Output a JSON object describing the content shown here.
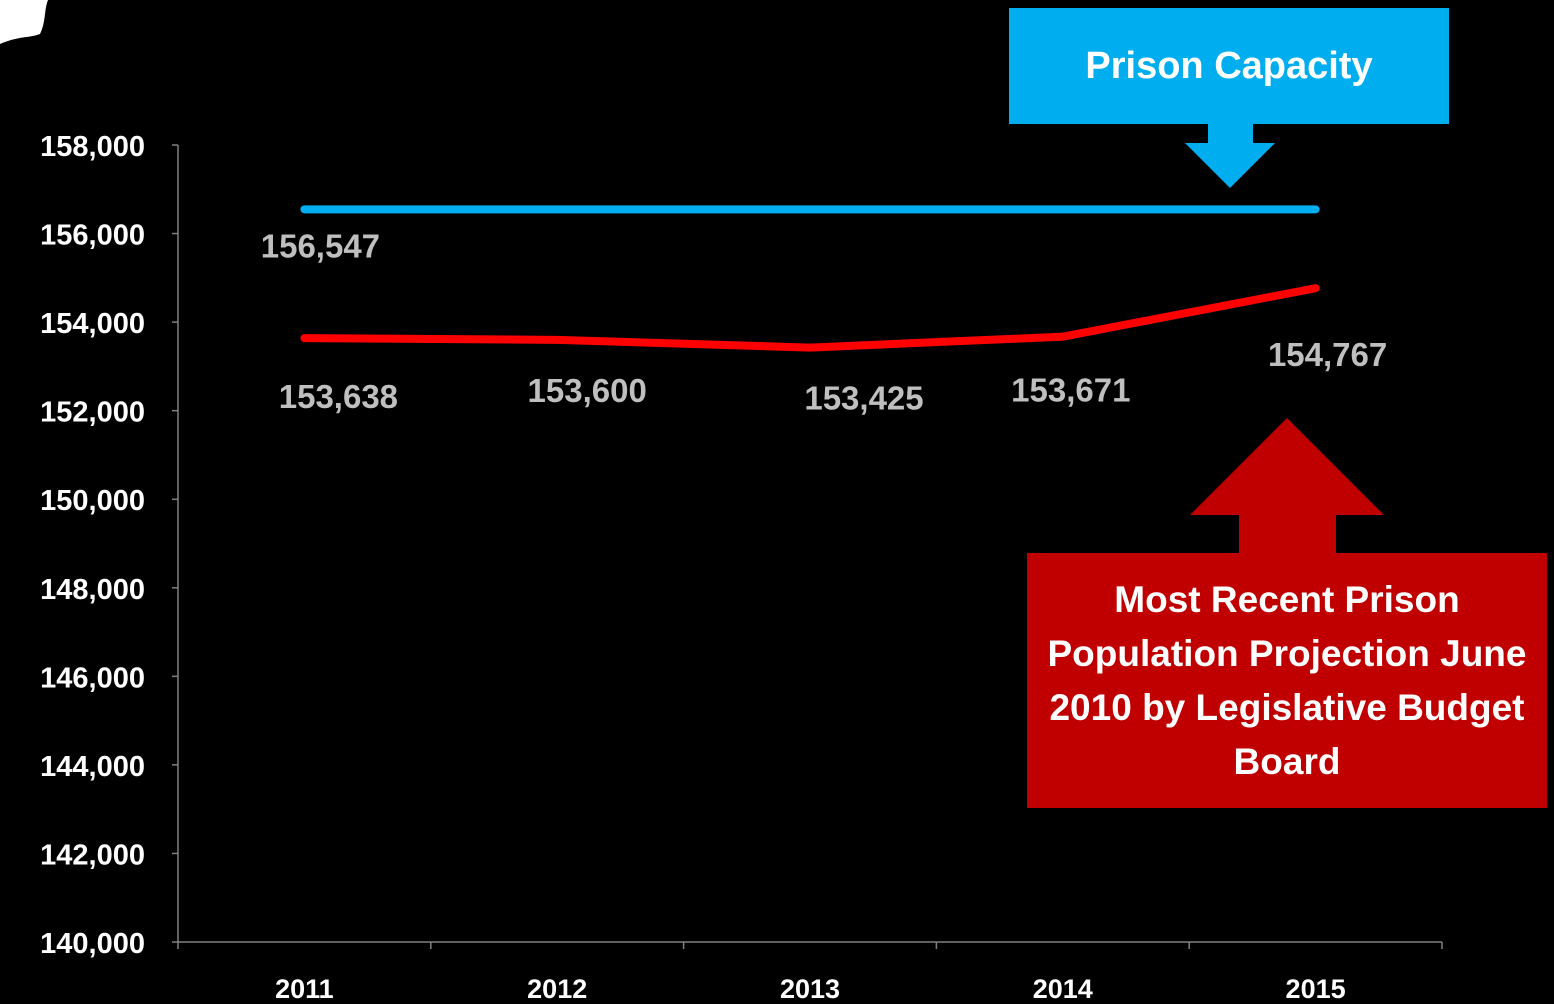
{
  "chart_data": {
    "type": "line",
    "categories": [
      "2011",
      "2012",
      "2013",
      "2014",
      "2015"
    ],
    "series": [
      {
        "name": "Prison Capacity",
        "color": "#00aeef",
        "values": [
          156547,
          156547,
          156547,
          156547,
          156547
        ]
      },
      {
        "name": "Most Recent Prison Population Projection June 2010 by Legislative Budget Board",
        "color": "#ff0000",
        "values": [
          153638,
          153600,
          153425,
          153671,
          154767
        ]
      }
    ],
    "data_labels": [
      "156,547",
      "153,638",
      "153,600",
      "153,425",
      "153,671",
      "154,767"
    ],
    "ylim": [
      140000,
      158000
    ],
    "y_ticks": [
      "140,000",
      "142,000",
      "144,000",
      "146,000",
      "148,000",
      "150,000",
      "152,000",
      "154,000",
      "156,000",
      "158,000"
    ],
    "grid": false,
    "legend": "none"
  },
  "callouts": {
    "capacity": "Prison Capacity",
    "projection": "Most Recent Prison Population Projection June 2010 by Legislative Budget Board"
  },
  "colors": {
    "background": "#000000",
    "axis": "#808080",
    "tick_label": "#ffffff",
    "data_label": "#bfbfbf",
    "capacity_callout": "#00aeef",
    "projection_callout": "#c00000"
  }
}
